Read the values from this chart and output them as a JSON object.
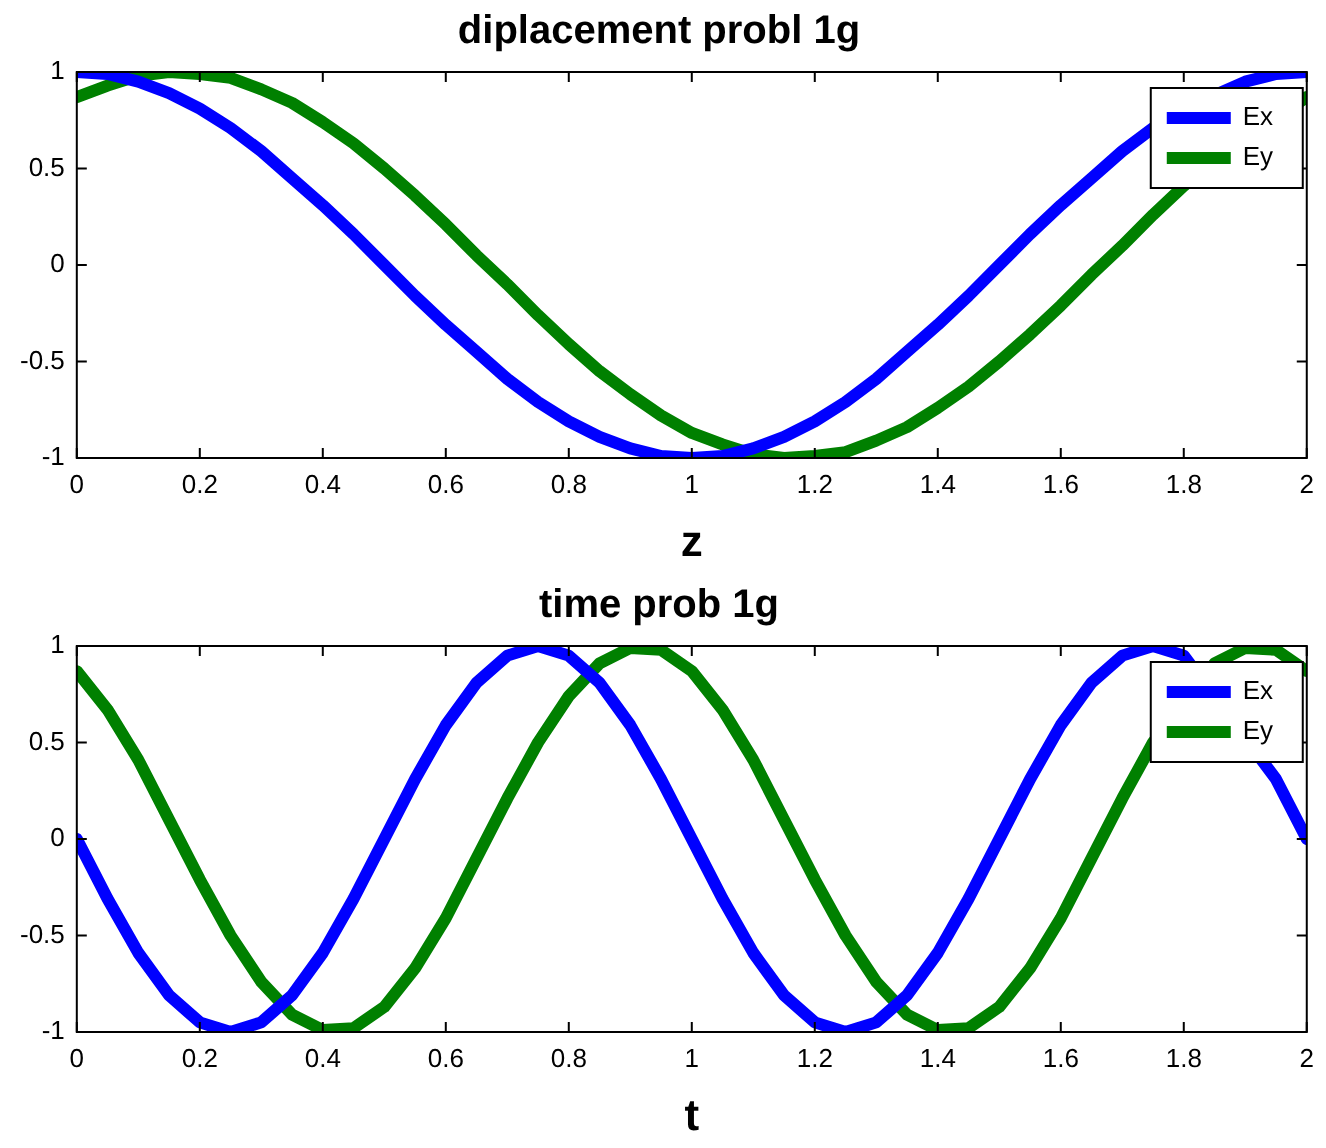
{
  "chart_data": [
    {
      "type": "line",
      "title": "diplacement probl 1g",
      "xlabel": "z",
      "x": [
        0,
        0.05,
        0.1,
        0.15,
        0.2,
        0.25,
        0.3,
        0.35,
        0.4,
        0.45,
        0.5,
        0.55,
        0.6,
        0.65,
        0.7,
        0.75,
        0.8,
        0.85,
        0.9,
        0.95,
        1,
        1.05,
        1.1,
        1.15,
        1.2,
        1.25,
        1.3,
        1.35,
        1.4,
        1.45,
        1.5,
        1.55,
        1.6,
        1.65,
        1.7,
        1.75,
        1.8,
        1.85,
        1.9,
        1.95,
        2
      ],
      "series": [
        {
          "name": "Ex",
          "color": "#0000ff",
          "values": [
            1,
            0.99,
            0.95,
            0.89,
            0.81,
            0.71,
            0.59,
            0.45,
            0.31,
            0.16,
            0,
            -0.16,
            -0.31,
            -0.45,
            -0.59,
            -0.71,
            -0.81,
            -0.89,
            -0.95,
            -0.99,
            -1,
            -0.99,
            -0.95,
            -0.89,
            -0.81,
            -0.71,
            -0.59,
            -0.45,
            -0.31,
            -0.16,
            0,
            0.16,
            0.31,
            0.45,
            0.59,
            0.71,
            0.81,
            null,
            0.95,
            0.99,
            1
          ]
        },
        {
          "name": "Ey",
          "color": "#008000",
          "values": [
            0.87,
            0.93,
            0.98,
            1,
            0.99,
            0.97,
            0.91,
            0.84,
            0.74,
            0.63,
            0.5,
            0.36,
            0.21,
            0.05,
            -0.1,
            -0.26,
            -0.41,
            -0.55,
            -0.67,
            -0.78,
            -0.87,
            -0.93,
            -0.98,
            -1,
            -0.99,
            -0.97,
            -0.91,
            -0.84,
            -0.74,
            -0.63,
            -0.5,
            -0.36,
            -0.21,
            -0.05,
            0.1,
            0.26,
            0.41,
            0.55,
            null,
            null,
            0.87
          ]
        }
      ],
      "xlim": [
        0,
        2
      ],
      "xticks": [
        0,
        0.2,
        0.4,
        0.6,
        0.8,
        1,
        1.2,
        1.4,
        1.6,
        1.8,
        2
      ],
      "ylim": [
        -1,
        1
      ],
      "yticks": [
        -1,
        -0.5,
        0,
        0.5,
        1
      ],
      "legend": "top right",
      "marker": "none",
      "line_style": "solid"
    },
    {
      "type": "line",
      "title": "time prob 1g",
      "xlabel": "t",
      "x": [
        0,
        0.05,
        0.1,
        0.15,
        0.2,
        0.25,
        0.3,
        0.35,
        0.4,
        0.45,
        0.5,
        0.55,
        0.6,
        0.65,
        0.7,
        0.75,
        0.8,
        0.85,
        0.9,
        0.95,
        1,
        1.05,
        1.1,
        1.15,
        1.2,
        1.25,
        1.3,
        1.35,
        1.4,
        1.45,
        1.5,
        1.55,
        1.6,
        1.65,
        1.7,
        1.75,
        1.8,
        1.85,
        1.9,
        1.95,
        2
      ],
      "series": [
        {
          "name": "Ex",
          "color": "#0000ff",
          "values": [
            0,
            -0.31,
            -0.59,
            -0.81,
            -0.95,
            -1,
            -0.95,
            -0.81,
            -0.59,
            -0.31,
            0,
            0.31,
            0.59,
            0.81,
            0.95,
            1,
            0.95,
            0.81,
            0.59,
            0.31,
            0,
            -0.31,
            -0.59,
            -0.81,
            -0.95,
            -1,
            -0.95,
            -0.81,
            -0.59,
            -0.31,
            0,
            0.31,
            0.59,
            0.81,
            0.95,
            1,
            0.95,
            null,
            null,
            0.31,
            0
          ]
        },
        {
          "name": "Ey",
          "color": "#008000",
          "values": [
            0.87,
            0.67,
            0.41,
            0.1,
            -0.21,
            -0.5,
            -0.74,
            -0.91,
            -0.99,
            -0.98,
            -0.87,
            -0.67,
            -0.41,
            -0.1,
            0.21,
            0.5,
            0.74,
            0.91,
            0.99,
            0.98,
            0.87,
            0.67,
            0.41,
            0.1,
            -0.21,
            -0.5,
            -0.74,
            -0.91,
            -0.99,
            -0.98,
            -0.87,
            -0.67,
            -0.41,
            -0.1,
            0.21,
            0.5,
            null,
            0.91,
            0.99,
            0.98,
            0.87
          ]
        }
      ],
      "xlim": [
        0,
        2
      ],
      "xticks": [
        0,
        0.2,
        0.4,
        0.6,
        0.8,
        1,
        1.2,
        1.4,
        1.6,
        1.8,
        2
      ],
      "ylim": [
        -1,
        1
      ],
      "yticks": [
        -1,
        -0.5,
        0,
        0.5,
        1
      ],
      "legend": "top right",
      "marker": "none",
      "line_style": "solid"
    }
  ]
}
